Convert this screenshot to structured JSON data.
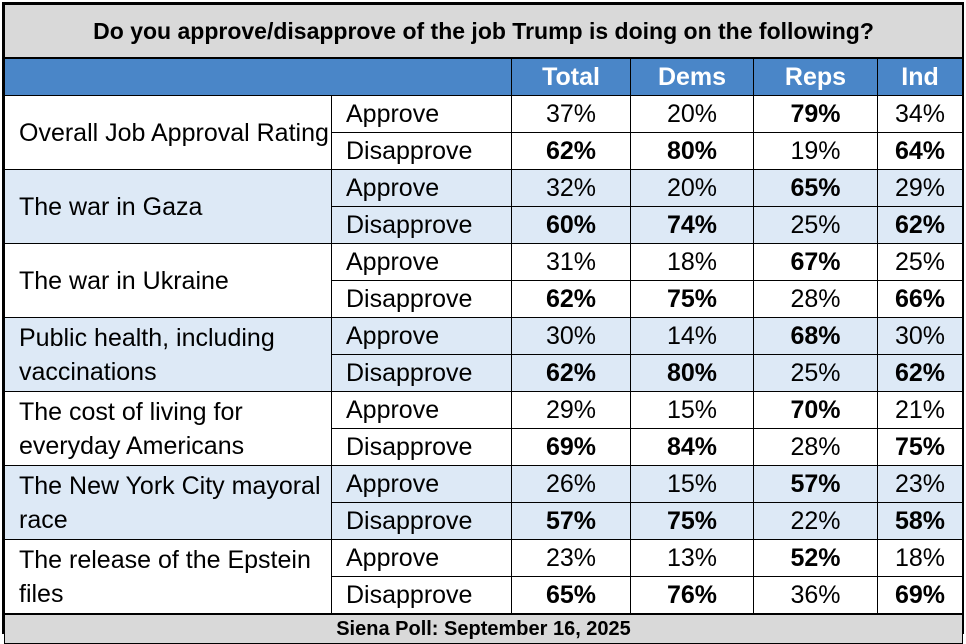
{
  "title": "Do you approve/disapprove of the job Trump is doing on the following?",
  "columns": [
    "Total",
    "Dems",
    "Reps",
    "Ind"
  ],
  "rows": [
    {
      "topic": "Overall Job Approval Rating",
      "approve": {
        "label": "Approve",
        "values": [
          "37%",
          "20%",
          "79%",
          "34%"
        ],
        "bold": [
          false,
          false,
          true,
          false
        ]
      },
      "disapprove": {
        "label": "Disapprove",
        "values": [
          "62%",
          "80%",
          "19%",
          "64%"
        ],
        "bold": [
          true,
          true,
          false,
          true
        ]
      }
    },
    {
      "topic": "The war in Gaza",
      "approve": {
        "label": "Approve",
        "values": [
          "32%",
          "20%",
          "65%",
          "29%"
        ],
        "bold": [
          false,
          false,
          true,
          false
        ]
      },
      "disapprove": {
        "label": "Disapprove",
        "values": [
          "60%",
          "74%",
          "25%",
          "62%"
        ],
        "bold": [
          true,
          true,
          false,
          true
        ]
      }
    },
    {
      "topic": "The war in Ukraine",
      "approve": {
        "label": "Approve",
        "values": [
          "31%",
          "18%",
          "67%",
          "25%"
        ],
        "bold": [
          false,
          false,
          true,
          false
        ]
      },
      "disapprove": {
        "label": "Disapprove",
        "values": [
          "62%",
          "75%",
          "28%",
          "66%"
        ],
        "bold": [
          true,
          true,
          false,
          true
        ]
      }
    },
    {
      "topic": "Public health, including vaccinations",
      "approve": {
        "label": "Approve",
        "values": [
          "30%",
          "14%",
          "68%",
          "30%"
        ],
        "bold": [
          false,
          false,
          true,
          false
        ]
      },
      "disapprove": {
        "label": "Disapprove",
        "values": [
          "62%",
          "80%",
          "25%",
          "62%"
        ],
        "bold": [
          true,
          true,
          false,
          true
        ]
      }
    },
    {
      "topic": "The cost of living for everyday Americans",
      "approve": {
        "label": "Approve",
        "values": [
          "29%",
          "15%",
          "70%",
          "21%"
        ],
        "bold": [
          false,
          false,
          true,
          false
        ]
      },
      "disapprove": {
        "label": "Disapprove",
        "values": [
          "69%",
          "84%",
          "28%",
          "75%"
        ],
        "bold": [
          true,
          true,
          false,
          true
        ]
      }
    },
    {
      "topic": "The New York City mayoral race",
      "approve": {
        "label": "Approve",
        "values": [
          "26%",
          "15%",
          "57%",
          "23%"
        ],
        "bold": [
          false,
          false,
          true,
          false
        ]
      },
      "disapprove": {
        "label": "Disapprove",
        "values": [
          "57%",
          "75%",
          "22%",
          "58%"
        ],
        "bold": [
          true,
          true,
          false,
          true
        ]
      }
    },
    {
      "topic": "The release of the Epstein files",
      "approve": {
        "label": "Approve",
        "values": [
          "23%",
          "13%",
          "52%",
          "18%"
        ],
        "bold": [
          false,
          false,
          true,
          false
        ]
      },
      "disapprove": {
        "label": "Disapprove",
        "values": [
          "65%",
          "76%",
          "36%",
          "69%"
        ],
        "bold": [
          true,
          true,
          false,
          true
        ]
      }
    }
  ],
  "footer": "Siena Poll: September 16, 2025",
  "colors": {
    "header_blue": "#4a86c8",
    "shade_blue": "#dde9f6",
    "title_gray": "#d9d9d9"
  }
}
